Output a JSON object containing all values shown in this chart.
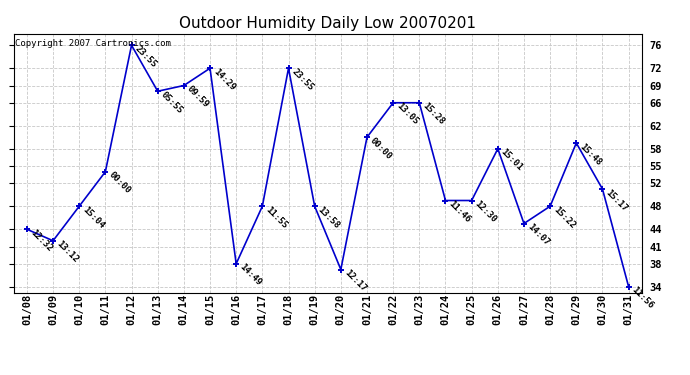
{
  "title": "Outdoor Humidity Daily Low 20070201",
  "copyright": "Copyright 2007 Cartronics.com",
  "dates": [
    "01/08",
    "01/09",
    "01/10",
    "01/11",
    "01/12",
    "01/13",
    "01/14",
    "01/15",
    "01/16",
    "01/17",
    "01/18",
    "01/19",
    "01/20",
    "01/21",
    "01/22",
    "01/23",
    "01/24",
    "01/25",
    "01/26",
    "01/27",
    "01/28",
    "01/29",
    "01/30",
    "01/31"
  ],
  "values": [
    44,
    42,
    48,
    54,
    76,
    68,
    69,
    72,
    38,
    48,
    72,
    48,
    37,
    60,
    66,
    66,
    49,
    49,
    58,
    45,
    48,
    59,
    51,
    34
  ],
  "labels": [
    "12:32",
    "13:12",
    "15:04",
    "00:00",
    "23:55",
    "05:55",
    "09:59",
    "14:29",
    "14:49",
    "11:55",
    "23:55",
    "13:58",
    "12:17",
    "00:00",
    "13:05",
    "15:28",
    "11:46",
    "12:30",
    "15:01",
    "14:07",
    "15:22",
    "15:48",
    "15:17",
    "11:56"
  ],
  "line_color": "#0000cc",
  "marker_color": "#0000cc",
  "bg_color": "#ffffff",
  "grid_color": "#c8c8c8",
  "ylim_low": 33,
  "ylim_high": 78,
  "yticks": [
    34,
    38,
    41,
    44,
    48,
    52,
    55,
    58,
    62,
    66,
    69,
    72,
    76
  ],
  "title_fontsize": 11,
  "label_fontsize": 6.5,
  "copyright_fontsize": 6.5,
  "tick_fontsize": 7.5
}
